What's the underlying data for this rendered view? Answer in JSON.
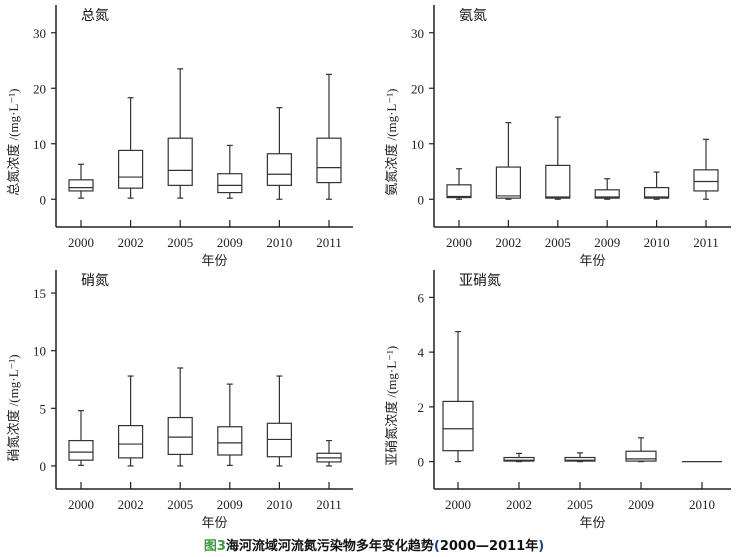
{
  "caption": {
    "figure_label": "图3",
    "text": "海河流域河流氮污染物多年变化趋势",
    "range_open": "(",
    "range": "2000—2011年",
    "range_close": ")"
  },
  "chart_data": [
    {
      "type": "box",
      "title": "总氮",
      "xlabel": "年份",
      "ylabel": "总氮浓度 /(mg·L⁻¹)",
      "ylim": [
        -5,
        35
      ],
      "yticks": [
        0,
        10,
        20,
        30
      ],
      "categories": [
        "2000",
        "2002",
        "2005",
        "2009",
        "2010",
        "2011"
      ],
      "boxes": [
        {
          "min": 0.2,
          "q1": 1.5,
          "median": 2.1,
          "q3": 3.5,
          "max": 6.3
        },
        {
          "min": 0.2,
          "q1": 2.0,
          "median": 4.0,
          "q3": 8.8,
          "max": 18.3
        },
        {
          "min": 0.2,
          "q1": 2.5,
          "median": 5.2,
          "q3": 11.0,
          "max": 23.5
        },
        {
          "min": 0.2,
          "q1": 1.2,
          "median": 2.5,
          "q3": 4.6,
          "max": 9.7
        },
        {
          "min": 0.0,
          "q1": 2.5,
          "median": 4.5,
          "q3": 8.2,
          "max": 16.5
        },
        {
          "min": 0.0,
          "q1": 3.0,
          "median": 5.7,
          "q3": 11.0,
          "max": 22.5
        }
      ]
    },
    {
      "type": "box",
      "title": "氨氮",
      "xlabel": "年份",
      "ylabel": "氨氮浓度 /(mg·L⁻¹)",
      "ylim": [
        -5,
        35
      ],
      "yticks": [
        0,
        10,
        20,
        30
      ],
      "categories": [
        "2000",
        "2002",
        "2005",
        "2009",
        "2010",
        "2011"
      ],
      "boxes": [
        {
          "min": 0.0,
          "q1": 0.3,
          "median": 0.5,
          "q3": 2.6,
          "max": 5.5
        },
        {
          "min": 0.0,
          "q1": 0.2,
          "median": 0.6,
          "q3": 5.8,
          "max": 13.8
        },
        {
          "min": 0.0,
          "q1": 0.2,
          "median": 0.4,
          "q3": 6.1,
          "max": 14.8
        },
        {
          "min": 0.0,
          "q1": 0.2,
          "median": 0.4,
          "q3": 1.7,
          "max": 3.7
        },
        {
          "min": 0.0,
          "q1": 0.2,
          "median": 0.4,
          "q3": 2.1,
          "max": 4.9
        },
        {
          "min": 0.0,
          "q1": 1.5,
          "median": 3.2,
          "q3": 5.3,
          "max": 10.8
        }
      ]
    },
    {
      "type": "box",
      "title": "硝氮",
      "xlabel": "年份",
      "ylabel": "硝氮浓度 /(mg·L⁻¹)",
      "ylim": [
        -2,
        17
      ],
      "yticks": [
        0,
        5,
        10,
        15
      ],
      "categories": [
        "2000",
        "2002",
        "2005",
        "2009",
        "2010",
        "2011"
      ],
      "boxes": [
        {
          "min": 0.05,
          "q1": 0.5,
          "median": 1.2,
          "q3": 2.2,
          "max": 4.8
        },
        {
          "min": 0.0,
          "q1": 0.7,
          "median": 1.9,
          "q3": 3.5,
          "max": 7.8
        },
        {
          "min": 0.0,
          "q1": 1.0,
          "median": 2.5,
          "q3": 4.2,
          "max": 8.5
        },
        {
          "min": 0.05,
          "q1": 0.95,
          "median": 2.0,
          "q3": 3.4,
          "max": 7.1
        },
        {
          "min": 0.0,
          "q1": 0.8,
          "median": 2.3,
          "q3": 3.7,
          "max": 7.8
        },
        {
          "min": 0.0,
          "q1": 0.35,
          "median": 0.7,
          "q3": 1.1,
          "max": 2.2
        }
      ]
    },
    {
      "type": "box",
      "title": "亚硝氮",
      "xlabel": "年份",
      "ylabel": "亚硝氮浓度 /(mg·L⁻¹)",
      "ylim": [
        -1,
        7
      ],
      "yticks": [
        0,
        2,
        4,
        6
      ],
      "categories": [
        "2000",
        "2002",
        "2005",
        "2009",
        "2010"
      ],
      "boxes": [
        {
          "min": 0.0,
          "q1": 0.4,
          "median": 1.2,
          "q3": 2.2,
          "max": 4.75
        },
        {
          "min": 0.0,
          "q1": 0.02,
          "median": 0.05,
          "q3": 0.15,
          "max": 0.3
        },
        {
          "min": 0.0,
          "q1": 0.02,
          "median": 0.05,
          "q3": 0.15,
          "max": 0.32
        },
        {
          "min": 0.0,
          "q1": 0.02,
          "median": 0.1,
          "q3": 0.38,
          "max": 0.87
        },
        {
          "min": 0.0,
          "q1": 0.0,
          "median": 0.0,
          "q3": 0.0,
          "max": 0.0
        }
      ]
    }
  ]
}
